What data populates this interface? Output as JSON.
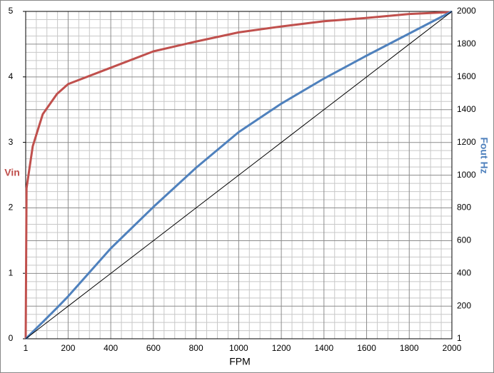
{
  "chart_data": {
    "type": "line",
    "x_label": "FPM",
    "y_label": "Vin",
    "y2_label": "Fout Hz",
    "x": [
      1,
      5,
      14,
      34,
      81,
      148,
      200,
      400,
      600,
      800,
      1000,
      1200,
      1400,
      1600,
      1800,
      2000
    ],
    "series": [
      {
        "color": "#c0504d",
        "axis": "y",
        "values": [
          0,
          2.3,
          2.5,
          2.94,
          3.43,
          3.74,
          3.89,
          4.14,
          4.39,
          4.54,
          4.68,
          4.77,
          4.85,
          4.9,
          4.96,
          4.99
        ]
      },
      {
        "color": "#4f81bd",
        "axis": "y2",
        "values": [
          1,
          5,
          17,
          43,
          103,
          190,
          260,
          553,
          806,
          1045,
          1263,
          1437,
          1590,
          1730,
          1865,
          2000
        ]
      },
      {
        "color": "#000000",
        "axis": "y2",
        "values": [
          1,
          5,
          14,
          34,
          81,
          148,
          200,
          400,
          600,
          800,
          1000,
          1200,
          1400,
          1600,
          1800,
          2000
        ]
      }
    ],
    "xlim": [
      1,
      2000
    ],
    "xticks": [
      1,
      200,
      400,
      600,
      800,
      1000,
      1200,
      1400,
      1600,
      1800,
      2000
    ],
    "ylim": [
      0,
      5
    ],
    "yticks": [
      0,
      1,
      2,
      3,
      4,
      5
    ],
    "y2lim": [
      1,
      2000
    ],
    "y2ticks": [
      1,
      200,
      400,
      600,
      800,
      1000,
      1200,
      1400,
      1600,
      1800,
      2000
    ],
    "grid": true
  }
}
